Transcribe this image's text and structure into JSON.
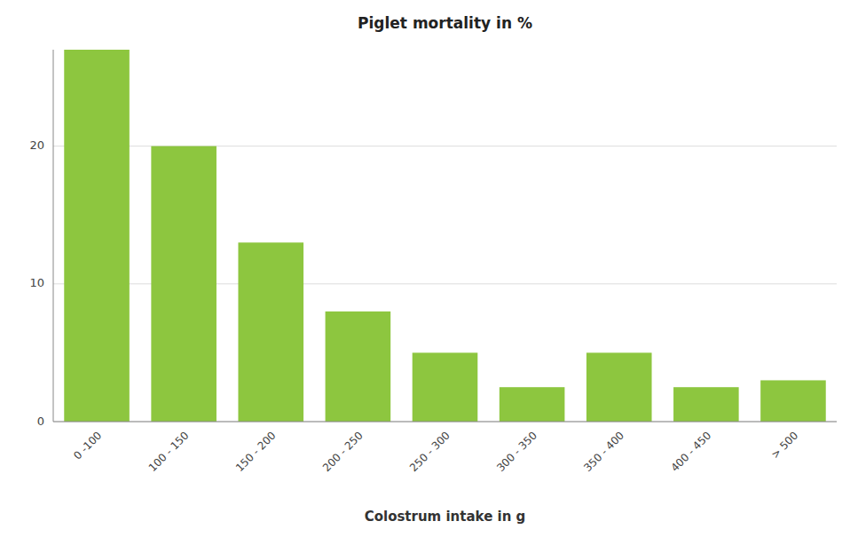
{
  "chart_data": {
    "type": "bar",
    "title": "Piglet mortality in %",
    "xlabel": "Colostrum intake in g",
    "categories": [
      "0 -100",
      "100 - 150",
      "150 - 200",
      "200 - 250",
      "250 - 300",
      "300 - 350",
      "350 - 400",
      "400 - 450",
      "> 500"
    ],
    "values": [
      27,
      20,
      13,
      8,
      5,
      2.5,
      5,
      2.5,
      3
    ],
    "color": "#8dc63f",
    "ylim": [
      0,
      27
    ],
    "yticks": [
      0,
      10,
      20
    ],
    "grid": true
  }
}
